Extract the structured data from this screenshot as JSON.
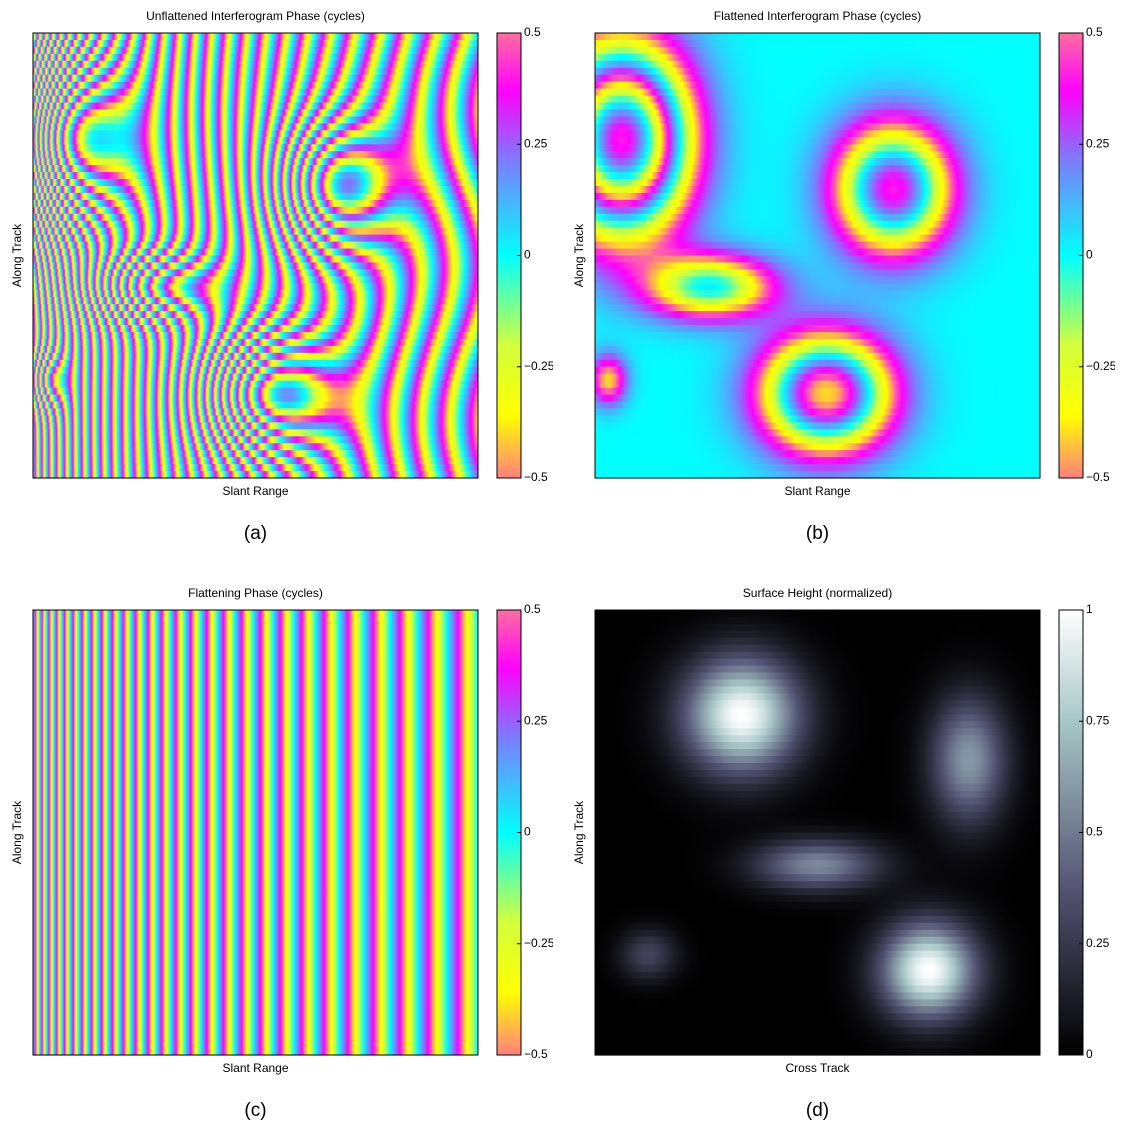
{
  "chart_data": [
    {
      "type": "heatmap",
      "title": "Unflattened Interferogram Phase (cycles)",
      "xlabel": "Slant Range",
      "ylabel": "Along Track",
      "caption": "(a)",
      "colormap": "hsv",
      "clim": [
        -0.5,
        0.5
      ],
      "cticks": [
        0.5,
        0.25,
        0,
        {
          "value": -0.25,
          "label": "−0.25"
        },
        {
          "value": -0.5,
          "label": "−0.5"
        }
      ]
    },
    {
      "type": "heatmap",
      "title": "Flattened Interferogram Phase (cycles)",
      "xlabel": "Slant Range",
      "ylabel": "Along Track",
      "caption": "(b)",
      "colormap": "hsv",
      "clim": [
        -0.5,
        0.5
      ],
      "cticks": [
        0.5,
        0.25,
        0,
        {
          "value": -0.25,
          "label": "−0.25"
        },
        {
          "value": -0.5,
          "label": "−0.5"
        }
      ]
    },
    {
      "type": "heatmap",
      "title": "Flattening Phase (cycles)",
      "xlabel": "Slant Range",
      "ylabel": "Along Track",
      "caption": "(c)",
      "colormap": "hsv",
      "clim": [
        -0.5,
        0.5
      ],
      "cticks": [
        0.5,
        0.25,
        0,
        {
          "value": -0.25,
          "label": "−0.25"
        },
        {
          "value": -0.5,
          "label": "−0.5"
        }
      ]
    },
    {
      "type": "heatmap",
      "title": "Surface Height (normalized)",
      "xlabel": "Cross Track",
      "ylabel": "Along Track",
      "caption": "(d)",
      "colormap": "bone",
      "clim": [
        0,
        1
      ],
      "cticks": [
        1,
        0.75,
        0.5,
        0.25,
        0
      ]
    }
  ]
}
